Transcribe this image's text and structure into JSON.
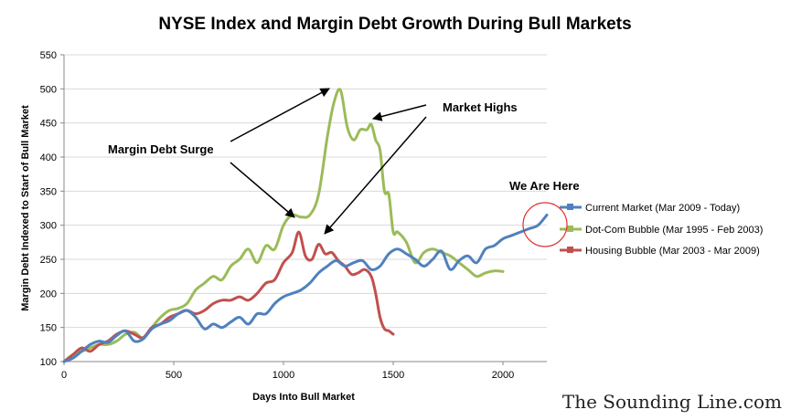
{
  "chart_data": {
    "type": "line",
    "title": "NYSE Index and Margin Debt Growth During Bull Markets",
    "xlabel": "Days Into Bull Market",
    "ylabel": "Margin Debt Indexed to Start of Bull Market",
    "xlim": [
      0,
      2200
    ],
    "ylim": [
      100,
      550
    ],
    "xticks": [
      "0",
      "500",
      "1000",
      "1500",
      "2000"
    ],
    "yticks": [
      "100",
      "150",
      "200",
      "250",
      "300",
      "350",
      "400",
      "450",
      "500",
      "550"
    ],
    "grid": "horizontal",
    "legend_position": "right",
    "series": [
      {
        "name": "Current Market (Mar 2009 - Today)",
        "color": "#4f81bd",
        "x": [
          0,
          40,
          80,
          120,
          160,
          200,
          240,
          280,
          320,
          360,
          400,
          440,
          480,
          520,
          560,
          600,
          640,
          680,
          720,
          760,
          800,
          840,
          880,
          920,
          960,
          1000,
          1040,
          1080,
          1120,
          1160,
          1200,
          1240,
          1280,
          1320,
          1360,
          1400,
          1440,
          1480,
          1520,
          1560,
          1600,
          1640,
          1680,
          1720,
          1760,
          1800,
          1840,
          1880,
          1920,
          1960,
          2000,
          2040,
          2080,
          2120,
          2160,
          2200
        ],
        "y": [
          100,
          105,
          115,
          125,
          130,
          128,
          138,
          145,
          130,
          133,
          148,
          155,
          160,
          170,
          175,
          165,
          148,
          155,
          150,
          158,
          165,
          155,
          170,
          170,
          185,
          195,
          200,
          205,
          215,
          230,
          240,
          248,
          240,
          245,
          248,
          235,
          240,
          258,
          265,
          258,
          250,
          240,
          250,
          262,
          235,
          248,
          255,
          245,
          265,
          270,
          280,
          285,
          290,
          295,
          300,
          315
        ]
      },
      {
        "name": "Dot-Com Bubble (Mar 1995 - Feb 2003)",
        "color": "#9bbb59",
        "x": [
          0,
          40,
          80,
          120,
          160,
          200,
          240,
          280,
          320,
          360,
          400,
          440,
          480,
          520,
          560,
          600,
          640,
          680,
          720,
          760,
          800,
          840,
          880,
          920,
          960,
          1000,
          1040,
          1080,
          1120,
          1160,
          1200,
          1230,
          1260,
          1290,
          1320,
          1350,
          1380,
          1400,
          1420,
          1440,
          1460,
          1480,
          1500,
          1520,
          1560,
          1600,
          1640,
          1680,
          1720,
          1760,
          1800,
          1840,
          1880,
          1920,
          1960,
          2000
        ],
        "y": [
          100,
          110,
          115,
          120,
          125,
          125,
          130,
          140,
          143,
          135,
          150,
          165,
          175,
          178,
          185,
          205,
          215,
          225,
          220,
          240,
          250,
          265,
          245,
          270,
          265,
          300,
          315,
          312,
          315,
          345,
          430,
          480,
          498,
          445,
          425,
          440,
          440,
          448,
          425,
          410,
          350,
          345,
          290,
          290,
          275,
          245,
          260,
          265,
          260,
          255,
          245,
          235,
          225,
          230,
          233,
          232
        ]
      },
      {
        "name": "Housing Bubble (Mar 2003 - Mar 2009)",
        "color": "#c0504d",
        "x": [
          0,
          40,
          80,
          120,
          160,
          200,
          240,
          280,
          320,
          360,
          400,
          440,
          480,
          520,
          560,
          600,
          640,
          680,
          720,
          760,
          800,
          840,
          880,
          920,
          960,
          1000,
          1040,
          1070,
          1100,
          1130,
          1160,
          1190,
          1220,
          1250,
          1280,
          1310,
          1340,
          1370,
          1400,
          1420,
          1440,
          1460,
          1480,
          1500
        ],
        "y": [
          100,
          110,
          120,
          115,
          125,
          130,
          140,
          145,
          140,
          135,
          150,
          155,
          165,
          170,
          175,
          170,
          175,
          185,
          190,
          190,
          195,
          190,
          200,
          215,
          220,
          245,
          260,
          290,
          255,
          250,
          272,
          258,
          260,
          248,
          240,
          228,
          230,
          235,
          225,
          200,
          165,
          148,
          145,
          140
        ]
      }
    ]
  },
  "annotations": {
    "margin_debt_surge": "Margin Debt Surge",
    "market_highs": "Market Highs",
    "we_are_here": "We Are Here"
  },
  "watermark": "The Sounding Line.com"
}
